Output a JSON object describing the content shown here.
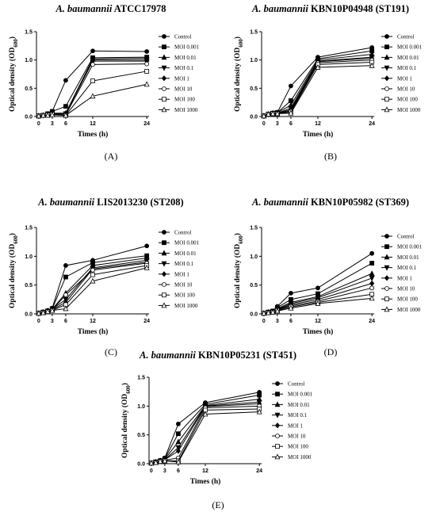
{
  "figure": {
    "panels": [
      {
        "label": "(A)",
        "title_italic": "A. baumannii",
        "title_rest": "ATCC17978"
      },
      {
        "label": "(B)",
        "title_italic": "A. baumannii",
        "title_rest": "KBN10P04948 (ST191)"
      },
      {
        "label": "(C)",
        "title_italic": "A. baumannii",
        "title_rest": "LIS2013230 (ST208)"
      },
      {
        "label": "(D)",
        "title_italic": "A. baumannii",
        "title_rest": "KBN10P05982 (ST369)"
      },
      {
        "label": "(E)",
        "title_italic": "A. baumannii",
        "title_rest": "KBN10P05231 (ST451)"
      }
    ],
    "xlabel": "Times (h)",
    "ylabel": "Optical density (OD",
    "ylabel_sub": "600",
    "ylabel_close": ")",
    "legend": [
      "Control",
      "MOI 0.001",
      "MOI 0.01",
      "MOI 0.1",
      "MOI 1",
      "MOI 10",
      "MOI 100",
      "MOI 1000"
    ],
    "marker_names": [
      "circle-filled",
      "square-filled",
      "triangle-up-filled",
      "triangle-down-filled",
      "diamond-filled",
      "circle-open",
      "square-open",
      "triangle-up-open"
    ]
  },
  "chart_data": [
    {
      "type": "line",
      "title": "A. baumannii ATCC17978",
      "xlabel": "Times (h)",
      "ylabel": "Optical density (OD600)",
      "x": [
        0,
        1,
        2,
        3,
        6,
        12,
        24
      ],
      "xticks": [
        0,
        3,
        6,
        12,
        24
      ],
      "yticks": [
        0.0,
        0.5,
        1.0,
        1.5
      ],
      "ylim": [
        0,
        1.5
      ],
      "xlim": [
        -0.5,
        24.5
      ],
      "series": [
        {
          "name": "Control",
          "values": [
            0.01,
            0.02,
            0.05,
            0.09,
            0.64,
            1.16,
            1.15
          ]
        },
        {
          "name": "MOI 0.001",
          "values": [
            0.01,
            0.02,
            0.05,
            0.09,
            0.18,
            1.04,
            1.05
          ]
        },
        {
          "name": "MOI 0.01",
          "values": [
            0.01,
            0.02,
            0.04,
            0.06,
            0.06,
            1.02,
            1.03
          ]
        },
        {
          "name": "MOI 0.1",
          "values": [
            0.01,
            0.02,
            0.03,
            0.05,
            0.05,
            1.0,
            1.0
          ]
        },
        {
          "name": "MOI 1",
          "values": [
            0.01,
            0.02,
            0.03,
            0.05,
            0.05,
            0.98,
            0.98
          ]
        },
        {
          "name": "MOI 10",
          "values": [
            0.01,
            0.02,
            0.03,
            0.04,
            0.03,
            0.92,
            0.93
          ]
        },
        {
          "name": "MOI 100",
          "values": [
            0.01,
            0.02,
            0.03,
            0.04,
            0.02,
            0.63,
            0.8
          ]
        },
        {
          "name": "MOI 1000",
          "values": [
            0.01,
            0.02,
            0.02,
            0.03,
            0.02,
            0.36,
            0.57
          ]
        }
      ]
    },
    {
      "type": "line",
      "title": "A. baumannii KBN10P04948 (ST191)",
      "xlabel": "Times (h)",
      "ylabel": "Optical density (OD600)",
      "x": [
        0,
        1,
        2,
        3,
        6,
        12,
        24
      ],
      "xticks": [
        0,
        3,
        6,
        12,
        24
      ],
      "yticks": [
        0.0,
        0.5,
        1.0,
        1.5
      ],
      "ylim": [
        0,
        1.5
      ],
      "xlim": [
        -0.5,
        24.5
      ],
      "series": [
        {
          "name": "Control",
          "values": [
            0.01,
            0.04,
            0.06,
            0.07,
            0.54,
            1.05,
            1.22
          ]
        },
        {
          "name": "MOI 0.001",
          "values": [
            0.01,
            0.04,
            0.06,
            0.07,
            0.28,
            1.02,
            1.16
          ]
        },
        {
          "name": "MOI 0.01",
          "values": [
            0.01,
            0.04,
            0.06,
            0.07,
            0.2,
            1.0,
            1.1
          ]
        },
        {
          "name": "MOI 0.1",
          "values": [
            0.01,
            0.04,
            0.05,
            0.06,
            0.15,
            0.98,
            1.05
          ]
        },
        {
          "name": "MOI 1",
          "values": [
            0.01,
            0.04,
            0.05,
            0.06,
            0.12,
            0.97,
            1.03
          ]
        },
        {
          "name": "MOI 10",
          "values": [
            0.01,
            0.04,
            0.05,
            0.06,
            0.1,
            0.95,
            1.0
          ]
        },
        {
          "name": "MOI 100",
          "values": [
            0.01,
            0.04,
            0.05,
            0.05,
            0.08,
            0.92,
            0.96
          ]
        },
        {
          "name": "MOI 1000",
          "values": [
            0.01,
            0.04,
            0.05,
            0.05,
            0.06,
            0.87,
            0.9
          ]
        }
      ]
    },
    {
      "type": "line",
      "title": "A. baumannii LIS2013230 (ST208)",
      "xlabel": "Times (h)",
      "ylabel": "Optical density (OD600)",
      "x": [
        0,
        1,
        2,
        3,
        6,
        12,
        24
      ],
      "xticks": [
        0,
        3,
        6,
        12,
        24
      ],
      "yticks": [
        0.0,
        0.5,
        1.0,
        1.5
      ],
      "ylim": [
        0,
        1.5
      ],
      "xlim": [
        -0.5,
        24.5
      ],
      "series": [
        {
          "name": "Control",
          "values": [
            0.01,
            0.03,
            0.06,
            0.1,
            0.84,
            0.93,
            1.18
          ]
        },
        {
          "name": "MOI 0.001",
          "values": [
            0.01,
            0.03,
            0.05,
            0.09,
            0.64,
            0.89,
            1.01
          ]
        },
        {
          "name": "MOI 0.01",
          "values": [
            0.01,
            0.03,
            0.05,
            0.08,
            0.36,
            0.84,
            0.97
          ]
        },
        {
          "name": "MOI 0.1",
          "values": [
            0.01,
            0.03,
            0.05,
            0.08,
            0.25,
            0.8,
            0.93
          ]
        },
        {
          "name": "MOI 1",
          "values": [
            0.01,
            0.03,
            0.05,
            0.07,
            0.2,
            0.78,
            0.9
          ]
        },
        {
          "name": "MOI 10",
          "values": [
            0.01,
            0.03,
            0.04,
            0.07,
            0.33,
            0.76,
            0.88
          ]
        },
        {
          "name": "MOI 100",
          "values": [
            0.01,
            0.02,
            0.04,
            0.06,
            0.16,
            0.68,
            0.84
          ]
        },
        {
          "name": "MOI 1000",
          "values": [
            0.01,
            0.02,
            0.04,
            0.06,
            0.09,
            0.57,
            0.8
          ]
        }
      ]
    },
    {
      "type": "line",
      "title": "A. baumannii KBN10P05982 (ST369)",
      "xlabel": "Times (h)",
      "ylabel": "Optical density (OD600)",
      "x": [
        0,
        1,
        2,
        3,
        6,
        12,
        24
      ],
      "xticks": [
        0,
        3,
        6,
        12,
        24
      ],
      "yticks": [
        0.0,
        0.5,
        1.0,
        1.5
      ],
      "ylim": [
        0,
        1.5
      ],
      "xlim": [
        -0.5,
        24.5
      ],
      "series": [
        {
          "name": "Control",
          "values": [
            0.01,
            0.03,
            0.05,
            0.13,
            0.36,
            0.45,
            1.05
          ]
        },
        {
          "name": "MOI 0.001",
          "values": [
            0.01,
            0.03,
            0.05,
            0.11,
            0.25,
            0.35,
            0.88
          ]
        },
        {
          "name": "MOI 0.01",
          "values": [
            0.01,
            0.03,
            0.04,
            0.09,
            0.2,
            0.3,
            0.7
          ]
        },
        {
          "name": "MOI 0.1",
          "values": [
            0.01,
            0.03,
            0.04,
            0.08,
            0.18,
            0.28,
            0.62
          ]
        },
        {
          "name": "MOI 1",
          "values": [
            0.01,
            0.03,
            0.04,
            0.07,
            0.16,
            0.25,
            0.53
          ]
        },
        {
          "name": "MOI 10",
          "values": [
            0.01,
            0.02,
            0.04,
            0.07,
            0.14,
            0.22,
            0.45
          ]
        },
        {
          "name": "MOI 100",
          "values": [
            0.01,
            0.02,
            0.03,
            0.06,
            0.12,
            0.2,
            0.34
          ]
        },
        {
          "name": "MOI 1000",
          "values": [
            0.01,
            0.02,
            0.03,
            0.05,
            0.1,
            0.18,
            0.27
          ]
        }
      ]
    },
    {
      "type": "line",
      "title": "A. baumannii KBN10P05231 (ST451)",
      "xlabel": "Times (h)",
      "ylabel": "Optical density (OD600)",
      "x": [
        0,
        1,
        2,
        3,
        6,
        12,
        24
      ],
      "xticks": [
        0,
        3,
        6,
        12,
        24
      ],
      "yticks": [
        0.0,
        0.5,
        1.0,
        1.5
      ],
      "ylim": [
        0,
        1.5
      ],
      "xlim": [
        -0.5,
        24.5
      ],
      "series": [
        {
          "name": "Control",
          "values": [
            0.01,
            0.03,
            0.06,
            0.1,
            0.69,
            1.06,
            1.24
          ]
        },
        {
          "name": "MOI 0.001",
          "values": [
            0.01,
            0.03,
            0.05,
            0.09,
            0.52,
            1.03,
            1.19
          ]
        },
        {
          "name": "MOI 0.01",
          "values": [
            0.01,
            0.03,
            0.05,
            0.08,
            0.38,
            1.01,
            1.12
          ]
        },
        {
          "name": "MOI 0.1",
          "values": [
            0.01,
            0.03,
            0.05,
            0.07,
            0.28,
            1.0,
            1.07
          ]
        },
        {
          "name": "MOI 1",
          "values": [
            0.01,
            0.03,
            0.05,
            0.07,
            0.22,
            0.99,
            1.04
          ]
        },
        {
          "name": "MOI 10",
          "values": [
            0.01,
            0.03,
            0.04,
            0.06,
            0.1,
            0.97,
            1.0
          ]
        },
        {
          "name": "MOI 100",
          "values": [
            0.01,
            0.02,
            0.04,
            0.05,
            0.05,
            0.93,
            0.95
          ]
        },
        {
          "name": "MOI 1000",
          "values": [
            0.01,
            0.02,
            0.04,
            0.05,
            0.03,
            0.86,
            0.9
          ]
        }
      ]
    }
  ]
}
